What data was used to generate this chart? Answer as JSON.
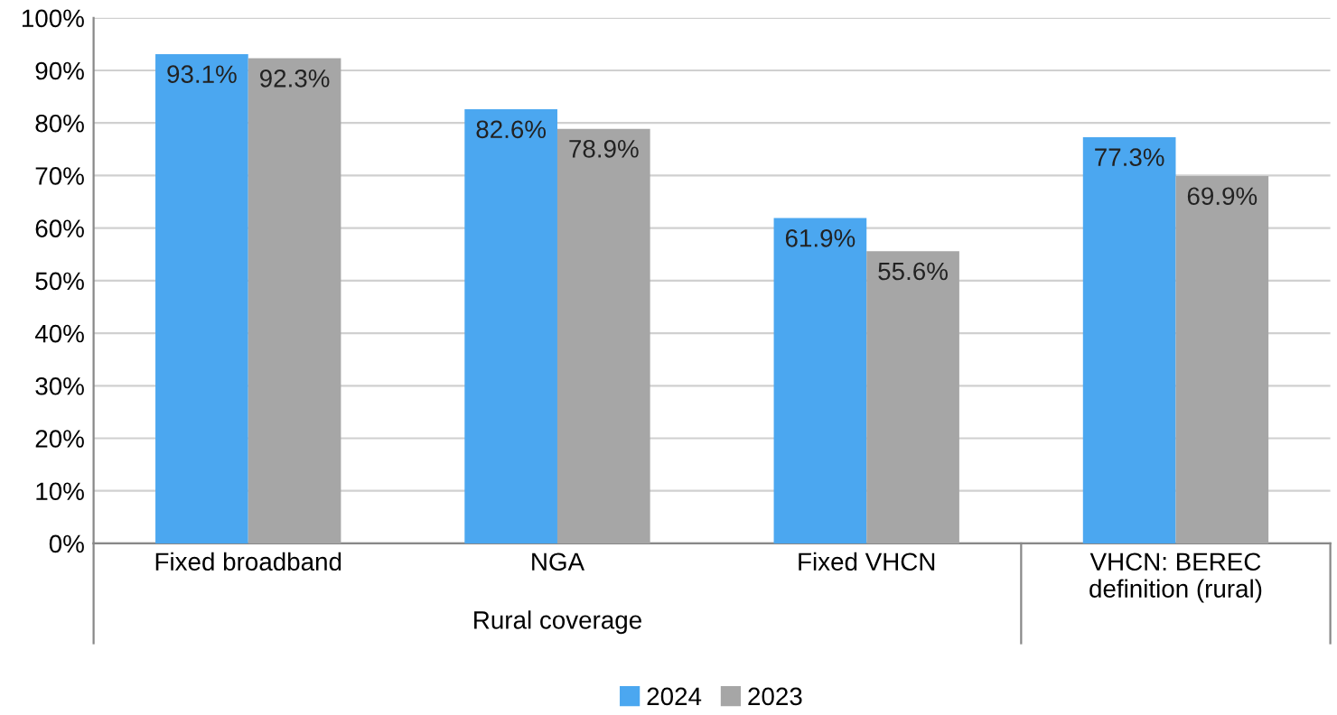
{
  "chart_data": {
    "type": "bar",
    "categories": [
      "Fixed broadband",
      "NGA",
      "Fixed VHCN",
      "VHCN: BEREC\ndefinition (rural)"
    ],
    "series": [
      {
        "name": "2024",
        "color": "#4ba7f0",
        "values": [
          93.1,
          82.6,
          61.9,
          77.3
        ],
        "value_labels": [
          "93.1%",
          "82.6%",
          "61.9%",
          "77.3%"
        ]
      },
      {
        "name": "2023",
        "color": "#a6a6a6",
        "values": [
          92.3,
          78.9,
          55.6,
          69.9
        ],
        "value_labels": [
          "92.3%",
          "78.9%",
          "55.6%",
          "69.9%"
        ]
      }
    ],
    "ylim": [
      0,
      100
    ],
    "yticks": [
      {
        "value": 0,
        "label": "0%"
      },
      {
        "value": 10,
        "label": "10%"
      },
      {
        "value": 20,
        "label": "20%"
      },
      {
        "value": 30,
        "label": "30%"
      },
      {
        "value": 40,
        "label": "40%"
      },
      {
        "value": 50,
        "label": "50%"
      },
      {
        "value": 60,
        "label": "60%"
      },
      {
        "value": 70,
        "label": "70%"
      },
      {
        "value": 80,
        "label": "80%"
      },
      {
        "value": 90,
        "label": "90%"
      },
      {
        "value": 100,
        "label": "100%"
      }
    ],
    "grid": "y",
    "legend": "bottom",
    "annotations": [
      "Rural coverage"
    ]
  }
}
